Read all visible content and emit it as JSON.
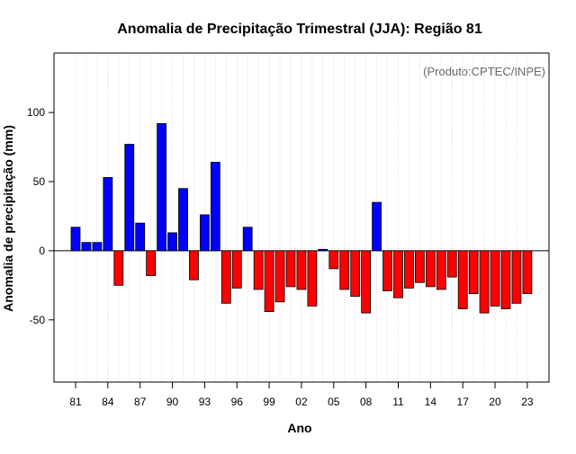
{
  "chart_data": {
    "type": "bar",
    "title": "Anomalia de Precipitação Trimestral (JJA): Região 81",
    "source": "(Produto:CPTEC/INPE)",
    "xlabel": "Ano",
    "ylabel": "Anomalia de precipitação (mm)",
    "ylim": [
      -95,
      143
    ],
    "yticks": [
      -50,
      0,
      50,
      100
    ],
    "xtick_labels": [
      "81",
      "84",
      "87",
      "90",
      "93",
      "96",
      "99",
      "02",
      "05",
      "08",
      "11",
      "14",
      "17",
      "20",
      "23"
    ],
    "grid": "vertical-dotted",
    "positive_color": "#0000ff",
    "negative_color": "#ff0000",
    "categories": [
      "1981",
      "1982",
      "1983",
      "1984",
      "1985",
      "1986",
      "1987",
      "1988",
      "1989",
      "1990",
      "1991",
      "1992",
      "1993",
      "1994",
      "1995",
      "1996",
      "1997",
      "1998",
      "1999",
      "2000",
      "2001",
      "2002",
      "2003",
      "2004",
      "2005",
      "2006",
      "2007",
      "2008",
      "2009",
      "2010",
      "2011",
      "2012",
      "2013",
      "2014",
      "2015",
      "2016",
      "2017",
      "2018",
      "2019",
      "2020",
      "2021",
      "2022",
      "2023"
    ],
    "values": [
      17,
      6,
      6,
      53,
      -25,
      77,
      20,
      -18,
      92,
      13,
      45,
      -21,
      26,
      64,
      -38,
      -27,
      17,
      -28,
      -44,
      -37,
      -26,
      -28,
      -40,
      1,
      -13,
      -28,
      -33,
      -45,
      35,
      -29,
      -34,
      -27,
      -23,
      -26,
      -28,
      -19,
      -42,
      -31,
      -45,
      -40,
      -42,
      -38,
      -31
    ]
  }
}
